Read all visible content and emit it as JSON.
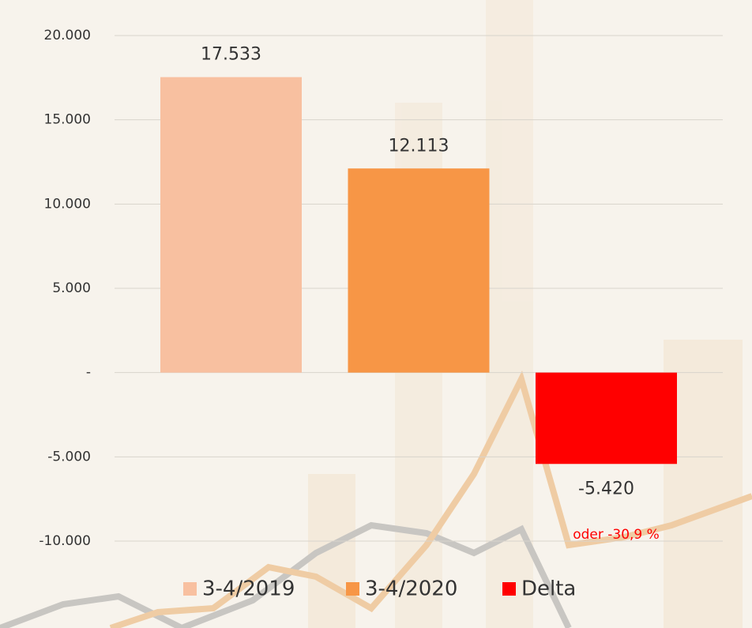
{
  "chart_data": {
    "type": "bar",
    "categories": [
      null
    ],
    "series": [
      {
        "name": "3-4/2019",
        "color": "#f8c0a0",
        "values": [
          17533
        ],
        "value_labels": [
          "17.533"
        ]
      },
      {
        "name": "3-4/2020",
        "color": "#f79646",
        "values": [
          12113
        ],
        "value_labels": [
          "12.113"
        ]
      },
      {
        "name": "Delta",
        "color": "#ff0000",
        "values": [
          -5420
        ],
        "value_labels": [
          "-5.420"
        ]
      }
    ],
    "annotation": "oder -30,9 %",
    "annotation_color": "#ff0000",
    "ylim": [
      -10000,
      20000
    ],
    "yticks": [
      {
        "value": -10000,
        "label": "-10.000"
      },
      {
        "value": -5000,
        "label": "-5.000"
      },
      {
        "value": 0,
        "label": "-"
      },
      {
        "value": 5000,
        "label": "5.000"
      },
      {
        "value": 10000,
        "label": "10.000"
      },
      {
        "value": 15000,
        "label": "15.000"
      },
      {
        "value": 20000,
        "label": "20.000"
      }
    ],
    "grid": true,
    "legend": "bottom"
  }
}
